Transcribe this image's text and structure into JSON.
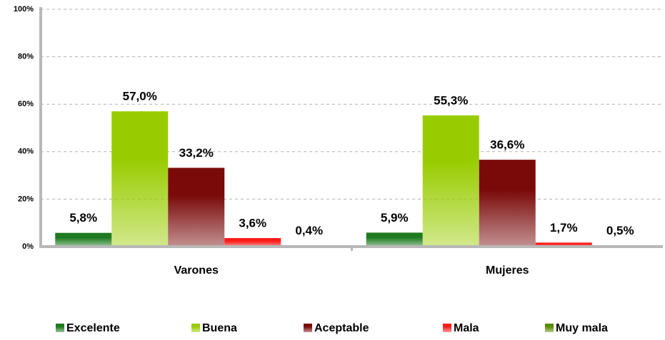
{
  "chart_data": {
    "type": "bar",
    "categories": [
      "Varones",
      "Mujeres"
    ],
    "series": [
      {
        "name": "Excelente",
        "color": "#1f7a1f",
        "values": [
          5.8,
          5.9
        ],
        "value_labels": [
          "5,8%",
          "5,9%"
        ]
      },
      {
        "name": "Buena",
        "color": "#99cc00",
        "values": [
          57.0,
          55.3
        ],
        "value_labels": [
          "57,0%",
          "55,3%"
        ]
      },
      {
        "name": "Aceptable",
        "color": "#7a0a0a",
        "values": [
          33.2,
          36.6
        ],
        "value_labels": [
          "33,2%",
          "36,6%"
        ]
      },
      {
        "name": "Mala",
        "color": "#ff1a1a",
        "values": [
          3.6,
          1.7
        ],
        "value_labels": [
          "3,6%",
          "1,7%"
        ]
      },
      {
        "name": "Muy mala",
        "color": "#5a8a00",
        "values": [
          0.4,
          0.5
        ],
        "value_labels": [
          "0,4%",
          "0,5%"
        ]
      }
    ],
    "ylim": [
      0,
      100
    ],
    "yticks": [
      {
        "value": 0,
        "label": "0%"
      },
      {
        "value": 20,
        "label": "20%"
      },
      {
        "value": 40,
        "label": "40%"
      },
      {
        "value": 60,
        "label": "60%"
      },
      {
        "value": 80,
        "label": "80%"
      },
      {
        "value": 100,
        "label": "100%"
      }
    ],
    "grid": true,
    "legend": "bottom"
  }
}
